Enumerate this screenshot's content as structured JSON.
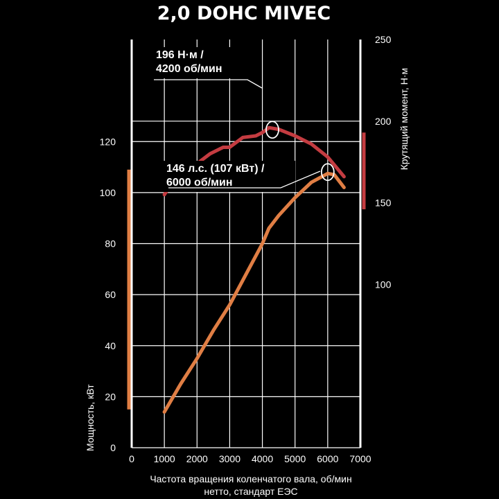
{
  "chart_data": {
    "type": "line",
    "title": "2,0 DOHC MIVEC",
    "xlabel": [
      "Частота вращения коленчатого вала, об/мин",
      "нетто, стандарт ЕЭС"
    ],
    "ylabel_left": "Мощность, кВт",
    "ylabel_right": "Крутящий момент, Н·м",
    "xlim": [
      0,
      7000
    ],
    "ylim_left": [
      0,
      160
    ],
    "ylim_right": [
      0,
      250
    ],
    "x_ticks": [
      0,
      1000,
      2000,
      3000,
      4000,
      5000,
      6000,
      7000
    ],
    "y_left_ticks": [
      0,
      20,
      40,
      60,
      80,
      100,
      120
    ],
    "y_right_ticks": [
      100,
      150,
      200,
      250
    ],
    "grid": true,
    "series": [
      {
        "axis": "right",
        "color": "#c43c41",
        "x": [
          1000,
          1200,
          1600,
          2000,
          2400,
          2800,
          3000,
          3400,
          3800,
          4000,
          4200,
          4500,
          5000,
          5500,
          6000,
          6500
        ],
        "values": [
          155,
          161,
          171,
          174,
          180,
          184,
          184,
          190,
          191,
          193,
          196,
          195,
          191,
          186,
          178,
          166
        ]
      },
      {
        "axis": "left",
        "color": "#e07e44",
        "x": [
          1000,
          1500,
          2000,
          2500,
          3000,
          3500,
          4000,
          4200,
          4500,
          5000,
          5500,
          6000,
          6200,
          6500
        ],
        "values": [
          14,
          25,
          35,
          46,
          56,
          68,
          80,
          86,
          91,
          98,
          104,
          107.5,
          107,
          102
        ]
      }
    ],
    "range_bars": [
      {
        "axis": "left",
        "from": 15,
        "to": 109,
        "color": "#e07e44"
      },
      {
        "axis": "right",
        "from": 146,
        "to": 193,
        "color": "#c43c41"
      }
    ],
    "annotations": [
      {
        "lines": [
          "196 Н·м /",
          "4200 об/мин"
        ],
        "series": 0,
        "x": 4200,
        "y": 196
      },
      {
        "lines": [
          "146 л.с. (107 кВт) /",
          "6000 об/мин"
        ],
        "series": 1,
        "x": 6000,
        "y": 107.5
      }
    ]
  }
}
